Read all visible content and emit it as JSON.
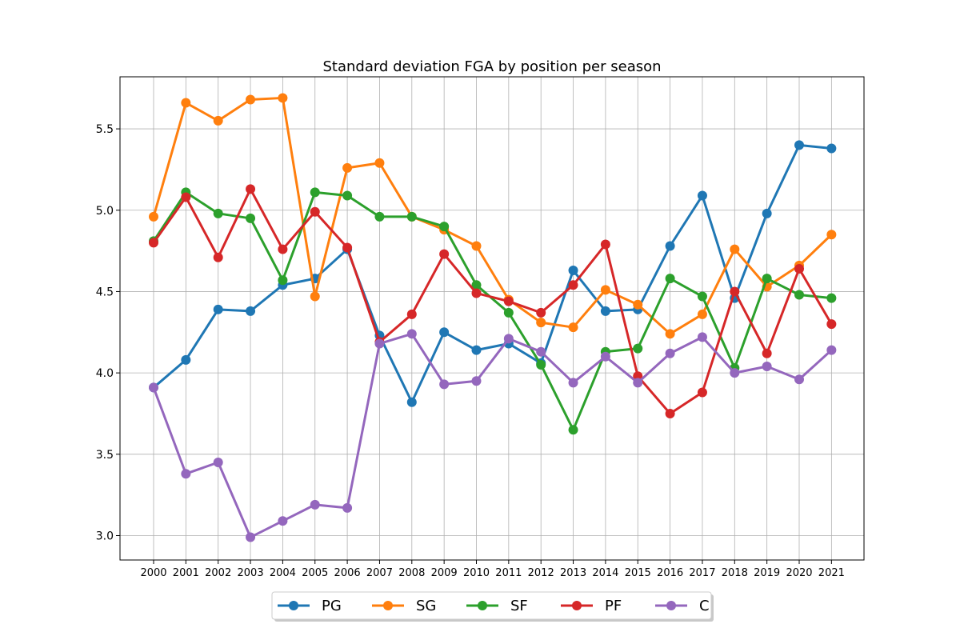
{
  "chart_data": {
    "type": "line",
    "title": "Standard deviation FGA by position per season",
    "xlabel": "",
    "ylabel": "",
    "categories": [
      "2000",
      "2001",
      "2002",
      "2003",
      "2004",
      "2005",
      "2006",
      "2007",
      "2008",
      "2009",
      "2010",
      "2011",
      "2012",
      "2013",
      "2014",
      "2015",
      "2016",
      "2017",
      "2018",
      "2019",
      "2020",
      "2021"
    ],
    "ylim": [
      2.85,
      5.82
    ],
    "yticks": [
      "3.0",
      "3.5",
      "4.0",
      "4.5",
      "5.0",
      "5.5"
    ],
    "grid": true,
    "legend_placement": "bottom-center",
    "series": [
      {
        "name": "PG",
        "color": "#1f77b4",
        "values": [
          3.91,
          4.08,
          4.39,
          4.38,
          4.54,
          4.58,
          4.76,
          4.23,
          3.82,
          4.25,
          4.14,
          4.18,
          4.06,
          4.63,
          4.38,
          4.39,
          4.78,
          5.09,
          4.46,
          4.98,
          5.4,
          5.38
        ]
      },
      {
        "name": "SG",
        "color": "#ff7f0e",
        "values": [
          4.96,
          5.66,
          5.55,
          5.68,
          5.69,
          4.47,
          5.26,
          5.29,
          4.96,
          4.88,
          4.78,
          4.45,
          4.31,
          4.28,
          4.51,
          4.42,
          4.24,
          4.36,
          4.76,
          4.53,
          4.66,
          4.85
        ]
      },
      {
        "name": "SF",
        "color": "#2ca02c",
        "values": [
          4.81,
          5.11,
          4.98,
          4.95,
          4.57,
          5.11,
          5.09,
          4.96,
          4.96,
          4.9,
          4.54,
          4.37,
          4.05,
          3.65,
          4.13,
          4.15,
          4.58,
          4.47,
          4.03,
          4.58,
          4.48,
          4.46
        ]
      },
      {
        "name": "PF",
        "color": "#d62728",
        "values": [
          4.8,
          5.08,
          4.71,
          5.13,
          4.76,
          4.99,
          4.77,
          4.19,
          4.36,
          4.73,
          4.49,
          4.44,
          4.37,
          4.54,
          4.79,
          3.98,
          3.75,
          3.88,
          4.5,
          4.12,
          4.64,
          4.3
        ]
      },
      {
        "name": "C",
        "color": "#9467bd",
        "values": [
          3.91,
          3.38,
          3.45,
          2.99,
          3.09,
          3.19,
          3.17,
          4.18,
          4.24,
          3.93,
          3.95,
          4.21,
          4.13,
          3.94,
          4.1,
          3.94,
          4.12,
          4.22,
          4.0,
          4.04,
          3.96,
          4.14
        ]
      }
    ]
  }
}
